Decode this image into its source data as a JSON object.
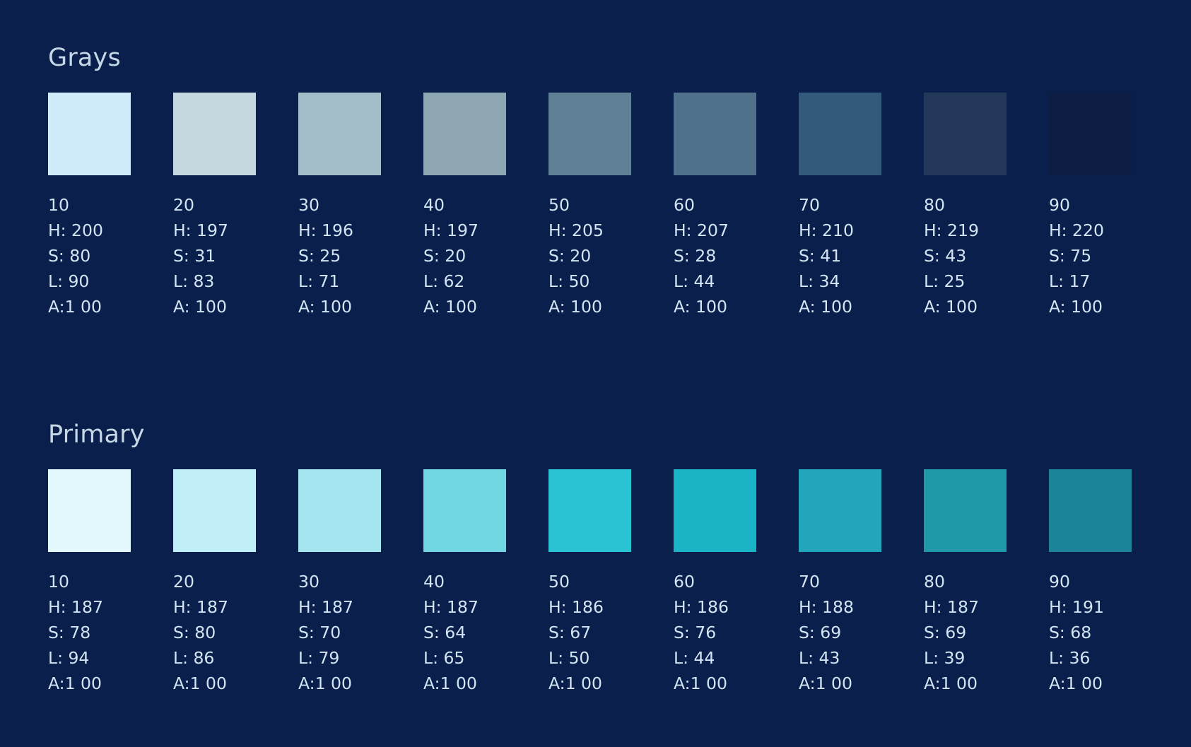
{
  "sections": [
    {
      "title": "Grays",
      "swatches": [
        {
          "label": "10",
          "h": "H: 200",
          "s": "S: 80",
          "l": "L: 90",
          "a": "A:1 00",
          "color": "#cfeaf8"
        },
        {
          "label": "20",
          "h": "H: 197",
          "s": "S: 31",
          "l": "L: 83",
          "a": "A: 100",
          "color": "#c5d8e0"
        },
        {
          "label": "30",
          "h": "H: 196",
          "s": "S: 25",
          "l": "L: 71",
          "a": "A: 100",
          "color": "#a4bec9"
        },
        {
          "label": "40",
          "h": "H: 197",
          "s": "S: 20",
          "l": "L: 62",
          "a": "A: 100",
          "color": "#8ea6b2"
        },
        {
          "label": "50",
          "h": "H: 205",
          "s": "S: 20",
          "l": "L: 50",
          "a": "A: 100",
          "color": "#5f7f94"
        },
        {
          "label": "60",
          "h": "H: 207",
          "s": "S: 28",
          "l": "L: 44",
          "a": "A: 100",
          "color": "#4f718c"
        },
        {
          "label": "70",
          "h": "H: 210",
          "s": "S: 41",
          "l": "L: 34",
          "a": "A: 100",
          "color": "#33597d"
        },
        {
          "label": "80",
          "h": "H: 219",
          "s": "S: 43",
          "l": "L: 25",
          "a": "A: 100",
          "color": "#243959"
        },
        {
          "label": "90",
          "h": "H: 220",
          "s": "S: 75",
          "l": "L: 17",
          "a": "A: 100",
          "color": "#0d1d44"
        }
      ]
    },
    {
      "title": "Primary",
      "swatches": [
        {
          "label": "10",
          "h": "H: 187",
          "s": "S: 78",
          "l": "L: 94",
          "a": "A:1 00",
          "color": "#e3f8fc"
        },
        {
          "label": "20",
          "h": "H: 187",
          "s": "S: 80",
          "l": "L: 86",
          "a": "A:1 00",
          "color": "#c0eff7"
        },
        {
          "label": "30",
          "h": "H: 187",
          "s": "S: 70",
          "l": "L: 79",
          "a": "A:1 00",
          "color": "#a5e5ef"
        },
        {
          "label": "40",
          "h": "H: 187",
          "s": "S: 64",
          "l": "L: 65",
          "a": "A:1 00",
          "color": "#6fd6e2"
        },
        {
          "label": "50",
          "h": "H: 186",
          "s": "S: 67",
          "l": "L: 50",
          "a": "A:1 00",
          "color": "#2ac3d4"
        },
        {
          "label": "60",
          "h": "H: 186",
          "s": "S: 76",
          "l": "L: 44",
          "a": "A:1 00",
          "color": "#1bb4c6"
        },
        {
          "label": "70",
          "h": "H: 188",
          "s": "S: 69",
          "l": "L: 43",
          "a": "A:1 00",
          "color": "#22a6bb"
        },
        {
          "label": "80",
          "h": "H: 187",
          "s": "S: 69",
          "l": "L: 39",
          "a": "A:1 00",
          "color": "#1f98a8"
        },
        {
          "label": "90",
          "h": "H: 191",
          "s": "S: 68",
          "l": "L: 36",
          "a": "A:1 00",
          "color": "#1d8398"
        }
      ]
    }
  ]
}
